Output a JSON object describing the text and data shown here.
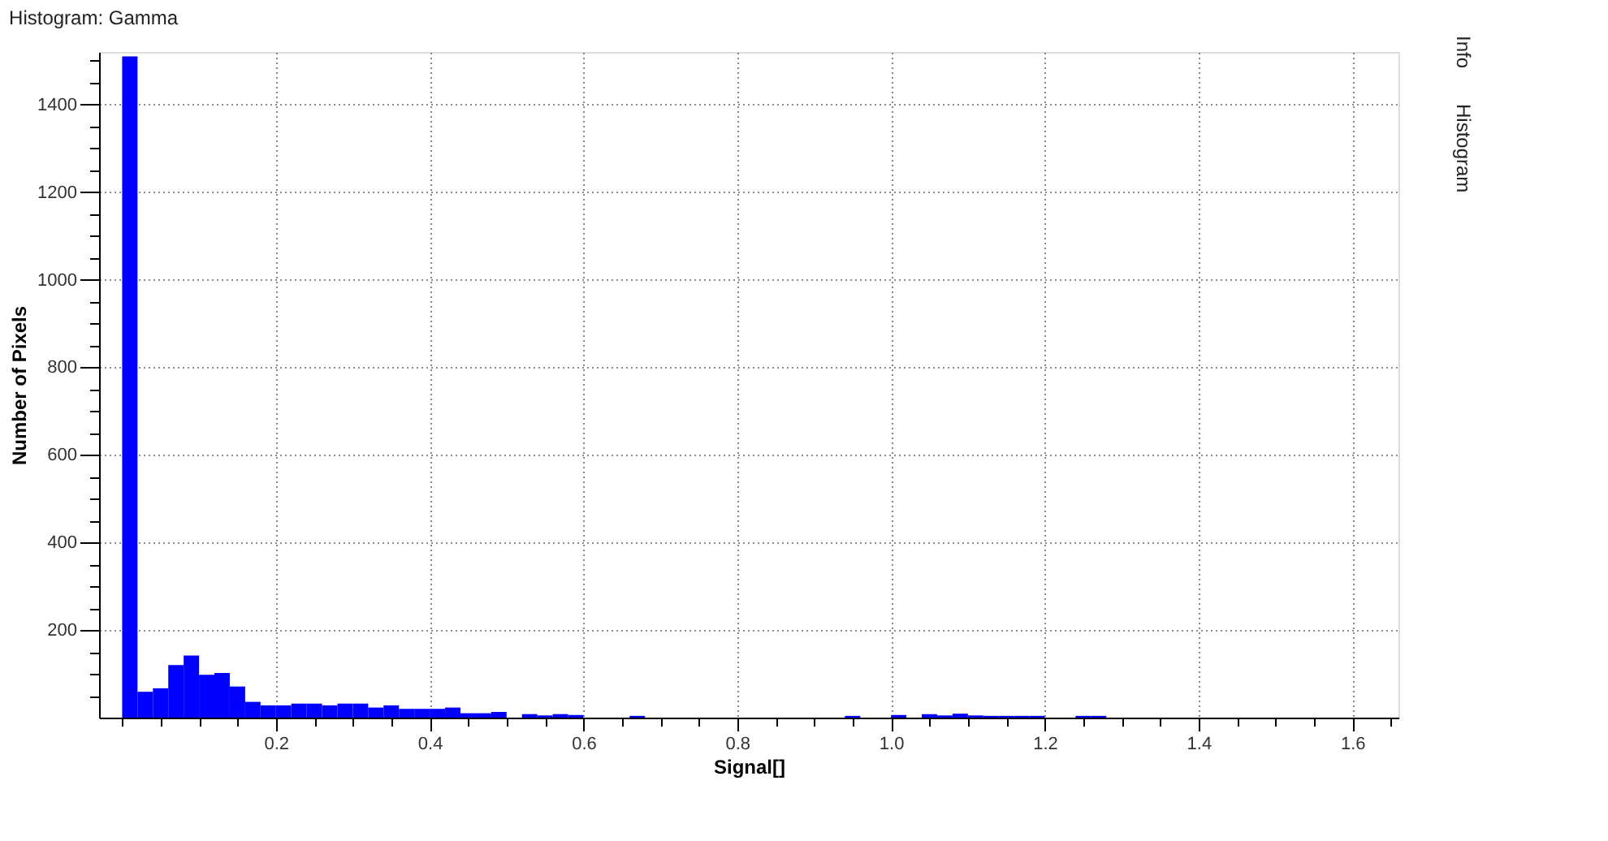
{
  "chart_data": {
    "type": "histogram",
    "title": "Histogram: Gamma",
    "xlabel": "Signal[]",
    "ylabel": "Number of Pixels",
    "bins": [
      0,
      0.02,
      0.04,
      0.06,
      0.08,
      0.1,
      0.12,
      0.14,
      0.16,
      0.18,
      0.2,
      0.22,
      0.24,
      0.26,
      0.28,
      0.3,
      0.32,
      0.34,
      0.36,
      0.38,
      0.4,
      0.42,
      0.44,
      0.46,
      0.48,
      0.5,
      0.52,
      0.54,
      0.56,
      0.58,
      0.6,
      0.62,
      0.64,
      0.66,
      0.68,
      0.7,
      0.72,
      0.74,
      0.76,
      0.78,
      0.8,
      0.82,
      0.84,
      0.86,
      0.88,
      0.9,
      0.92,
      0.94,
      0.96,
      0.98,
      1.0,
      1.02,
      1.04,
      1.06,
      1.08,
      1.1,
      1.12,
      1.14,
      1.16,
      1.18,
      1.2,
      1.22,
      1.24,
      1.26,
      1.28
    ],
    "values": [
      1510,
      59,
      67,
      120,
      142,
      98,
      102,
      71,
      36,
      28,
      28,
      32,
      32,
      28,
      32,
      32,
      23,
      28,
      20,
      20,
      20,
      23,
      10,
      10,
      13,
      0,
      8,
      5,
      8,
      6,
      0,
      0,
      0,
      4,
      0,
      0,
      0,
      0,
      0,
      0,
      0,
      0,
      0,
      0,
      0,
      0,
      0,
      4,
      0,
      0,
      6,
      0,
      8,
      5,
      9,
      5,
      4,
      4,
      4,
      4,
      0,
      0,
      4,
      4
    ],
    "color": "#0000ff",
    "xlim": [
      -0.03,
      1.66
    ],
    "ylim": [
      0,
      1520
    ],
    "xticks": [
      {
        "value": 0,
        "label": null
      },
      {
        "value": 0.05,
        "label": null
      },
      {
        "value": 0.1,
        "label": null
      },
      {
        "value": 0.15,
        "label": null
      },
      0.2,
      {
        "value": 0.25,
        "label": null
      },
      {
        "value": 0.3,
        "label": null
      },
      {
        "value": 0.35,
        "label": null
      },
      0.4,
      {
        "value": 0.45,
        "label": null
      },
      {
        "value": 0.5,
        "label": null
      },
      {
        "value": 0.55,
        "label": null
      },
      0.6,
      {
        "value": 0.65,
        "label": null
      },
      {
        "value": 0.7,
        "label": null
      },
      {
        "value": 0.75,
        "label": null
      },
      0.8,
      {
        "value": 0.85,
        "label": null
      },
      {
        "value": 0.9,
        "label": null
      },
      {
        "value": 0.95,
        "label": null
      },
      {
        "value": 1.0,
        "label": "1.0"
      },
      {
        "value": 1.05,
        "label": null
      },
      {
        "value": 1.1,
        "label": null
      },
      {
        "value": 1.15,
        "label": null
      },
      1.2,
      {
        "value": 1.25,
        "label": null
      },
      {
        "value": 1.3,
        "label": null
      },
      {
        "value": 1.35,
        "label": null
      },
      1.4,
      {
        "value": 1.45,
        "label": null
      },
      {
        "value": 1.5,
        "label": null
      },
      {
        "value": 1.55,
        "label": null
      },
      1.6,
      {
        "value": 1.65,
        "label": null
      }
    ],
    "yticks": [
      {
        "value": 50,
        "label": null
      },
      {
        "value": 100,
        "label": null
      },
      {
        "value": 150,
        "label": null
      },
      200,
      {
        "value": 250,
        "label": null
      },
      {
        "value": 300,
        "label": null
      },
      {
        "value": 350,
        "label": null
      },
      400,
      {
        "value": 450,
        "label": null
      },
      {
        "value": 500,
        "label": null
      },
      {
        "value": 550,
        "label": null
      },
      600,
      {
        "value": 650,
        "label": null
      },
      {
        "value": 700,
        "label": null
      },
      {
        "value": 750,
        "label": null
      },
      800,
      {
        "value": 850,
        "label": null
      },
      {
        "value": 900,
        "label": null
      },
      {
        "value": 950,
        "label": null
      },
      1000,
      {
        "value": 1050,
        "label": null
      },
      {
        "value": 1100,
        "label": null
      },
      {
        "value": 1150,
        "label": null
      },
      1200,
      {
        "value": 1250,
        "label": null
      },
      {
        "value": 1300,
        "label": null
      },
      {
        "value": 1350,
        "label": null
      },
      1400,
      {
        "value": 1450,
        "label": null
      },
      {
        "value": 1500,
        "label": null
      }
    ],
    "grid": true,
    "annotations": [
      "Info",
      "Histogram"
    ]
  }
}
